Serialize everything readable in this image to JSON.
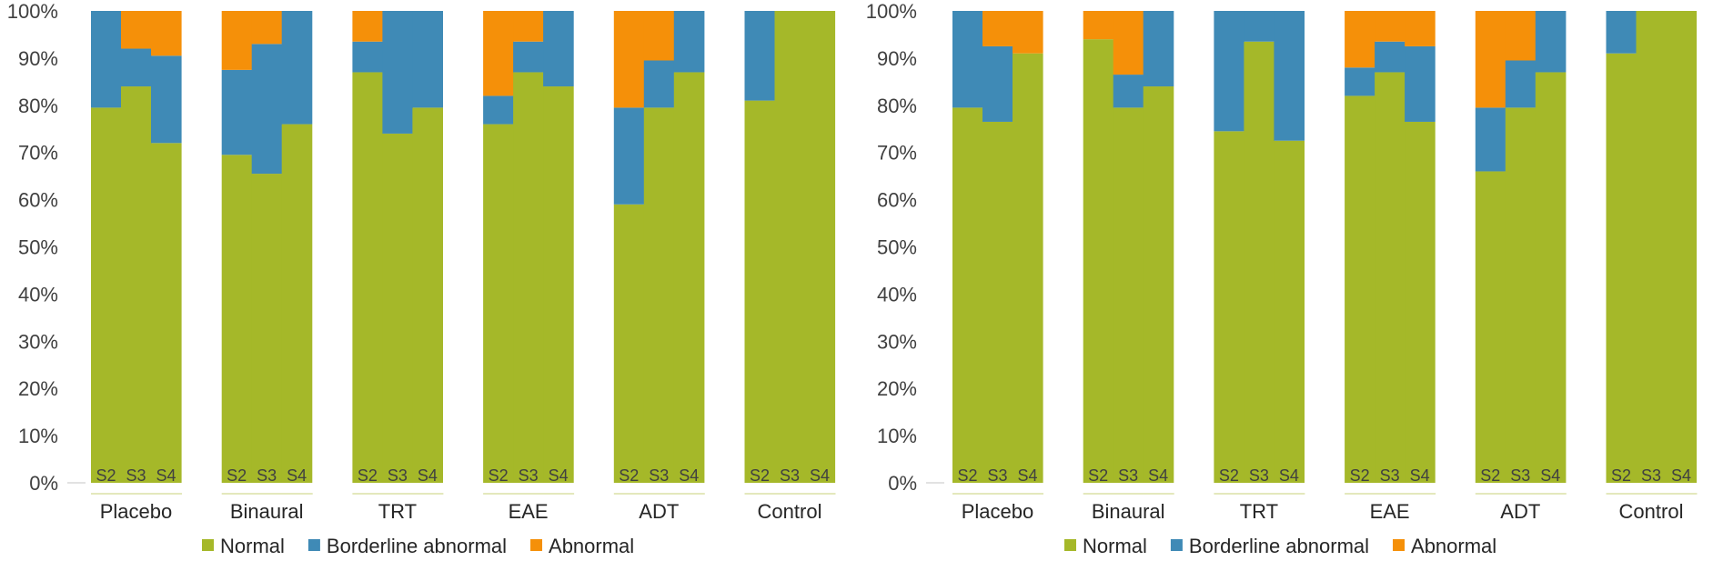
{
  "chart_data": [
    {
      "type": "bar",
      "stacked": true,
      "percent": true,
      "title": "",
      "xlabel": "",
      "ylabel": "",
      "ylim": [
        0,
        100
      ],
      "yticks": [
        "0%",
        "10%",
        "20%",
        "30%",
        "40%",
        "50%",
        "60%",
        "70%",
        "80%",
        "90%",
        "100%"
      ],
      "groups": [
        "Placebo",
        "Binaural",
        "TRT",
        "EAE",
        "ADT",
        "Control"
      ],
      "sessions": [
        "S2",
        "S3",
        "S4"
      ],
      "series": [
        {
          "name": "Normal",
          "color": "#a5b829",
          "values": [
            [
              79.5,
              84,
              72
            ],
            [
              69.5,
              65.5,
              76
            ],
            [
              87,
              74,
              79.5
            ],
            [
              76,
              87,
              84
            ],
            [
              59,
              79.5,
              87
            ],
            [
              81,
              100,
              100
            ]
          ]
        },
        {
          "name": "Borderline abnormal",
          "color": "#3f8ab6",
          "values": [
            [
              20.5,
              8,
              18.5
            ],
            [
              18,
              27.5,
              24
            ],
            [
              6.5,
              26,
              20.5
            ],
            [
              6,
              6.5,
              16
            ],
            [
              20.5,
              10,
              13
            ],
            [
              19,
              0,
              0
            ]
          ]
        },
        {
          "name": "Abnormal",
          "color": "#f59009",
          "values": [
            [
              0,
              8,
              9.5
            ],
            [
              12.5,
              7,
              0
            ],
            [
              6.5,
              0,
              0
            ],
            [
              18,
              6.5,
              0
            ],
            [
              20.5,
              10.5,
              0
            ],
            [
              0,
              0,
              0
            ]
          ]
        }
      ],
      "legend_position": "bottom-center",
      "grid": false
    },
    {
      "type": "bar",
      "stacked": true,
      "percent": true,
      "title": "",
      "xlabel": "",
      "ylabel": "",
      "ylim": [
        0,
        100
      ],
      "yticks": [
        "0%",
        "10%",
        "20%",
        "30%",
        "40%",
        "50%",
        "60%",
        "70%",
        "80%",
        "90%",
        "100%"
      ],
      "groups": [
        "Placebo",
        "Binaural",
        "TRT",
        "EAE",
        "ADT",
        "Control"
      ],
      "sessions": [
        "S2",
        "S3",
        "S4"
      ],
      "series": [
        {
          "name": "Normal",
          "color": "#a5b829",
          "values": [
            [
              79.5,
              76.5,
              91
            ],
            [
              94,
              79.5,
              84
            ],
            [
              74.5,
              93.5,
              72.5
            ],
            [
              82,
              87,
              76.5
            ],
            [
              66,
              79.5,
              87
            ],
            [
              91,
              100,
              100
            ]
          ]
        },
        {
          "name": "Borderline abnormal",
          "color": "#3f8ab6",
          "values": [
            [
              20.5,
              16,
              0
            ],
            [
              0,
              7,
              16
            ],
            [
              25.5,
              6.5,
              27.5
            ],
            [
              6,
              6.5,
              16
            ],
            [
              13.5,
              10,
              13
            ],
            [
              9,
              0,
              0
            ]
          ]
        },
        {
          "name": "Abnormal",
          "color": "#f59009",
          "values": [
            [
              0,
              7.5,
              9
            ],
            [
              6,
              13.5,
              0
            ],
            [
              0,
              0,
              0
            ],
            [
              12,
              6.5,
              7.5
            ],
            [
              20.5,
              10.5,
              0
            ],
            [
              0,
              0,
              0
            ]
          ]
        }
      ],
      "legend_position": "bottom-center",
      "grid": false
    }
  ]
}
